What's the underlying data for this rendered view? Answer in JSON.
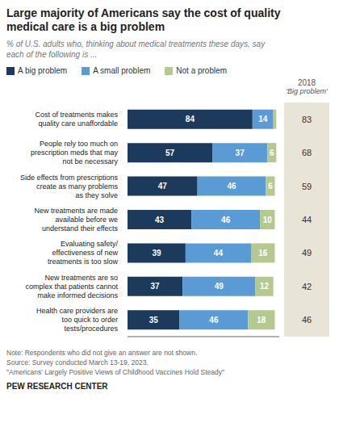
{
  "chart_data": {
    "type": "bar",
    "orientation": "horizontal",
    "stacked": true,
    "title": "Large majority of Americans say the cost of quality\nmedical care is a big problem",
    "subtitle": "% of U.S. adults who, thinking about medical treatments these days, say\neach of the following is ...",
    "categories": [
      "Cost of treatments makes\nquality care unaffordable",
      "People rely too much on\nprescription meds that may\nnot be necessary",
      "Side effects from prescriptions\ncreate as many problems\nas they solve",
      "New treatments are made\navailable before we\nunderstand their effects",
      "Evaluating safety/\neffectiveness of new\ntreatments is too slow",
      "New treatments are so\ncomplex that patients cannot\nmake informed decisions",
      "Health care providers are\ntoo quick to order\ntests/procedures"
    ],
    "series": [
      {
        "name": "A big problem",
        "color": "#1b3a5c",
        "values": [
          84,
          57,
          47,
          43,
          39,
          37,
          35
        ]
      },
      {
        "name": "A small problem",
        "color": "#5b9bd5",
        "values": [
          14,
          37,
          46,
          46,
          44,
          49,
          46
        ]
      },
      {
        "name": "Not a problem",
        "color": "#b5c98e",
        "values": [
          2,
          6,
          6,
          10,
          16,
          12,
          18
        ],
        "value_labels": [
          null,
          "6",
          "6",
          "10",
          "16",
          "12",
          "18"
        ]
      }
    ],
    "xlim": [
      0,
      102
    ],
    "tick_labels": "y",
    "grid": false,
    "legend": "top",
    "data_labels": true,
    "side_column": {
      "title": "2018",
      "subtitle": "'Big problem'",
      "color": "#e8e4d8",
      "values": [
        83,
        68,
        59,
        44,
        49,
        42,
        46
      ]
    },
    "note": "Note: Respondents who did not give an answer are not shown.\nSource: Survey conducted March 13-19, 2023.\n\"Americans' Largely Positive Views of Childhood Vaccines Hold Steady\"",
    "footer": "PEW RESEARCH CENTER"
  }
}
